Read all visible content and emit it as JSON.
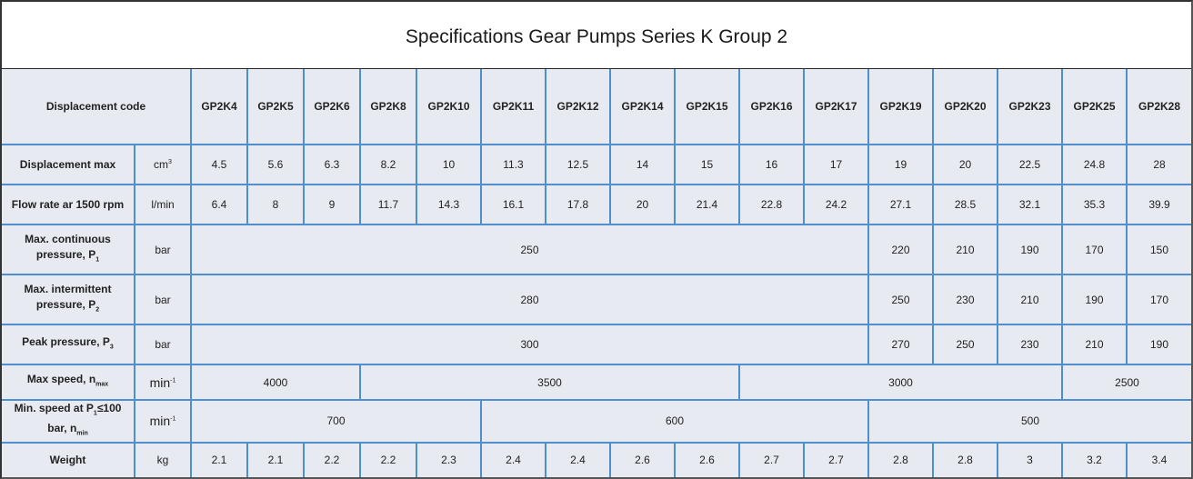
{
  "title": "Specifications Gear Pumps Series K Group 2",
  "header": {
    "label": "Displacement code",
    "models": [
      "GP2K4",
      "GP2K5",
      "GP2K6",
      "GP2K8",
      "GP2K10",
      "GP2K11",
      "GP2K12",
      "GP2K14",
      "GP2K15",
      "GP2K16",
      "GP2K17",
      "GP2K19",
      "GP2K20",
      "GP2K23",
      "GP2K25",
      "GP2K28"
    ]
  },
  "rows": {
    "displacement": {
      "label": "Displacement max",
      "unit_base": "cm",
      "unit_sup": "3",
      "values": [
        "4.5",
        "5.6",
        "6.3",
        "8.2",
        "10",
        "11.3",
        "12.5",
        "14",
        "15",
        "16",
        "17",
        "19",
        "20",
        "22.5",
        "24.8",
        "28"
      ]
    },
    "flow": {
      "label": "Flow rate ar 1500 rpm",
      "unit": "l/min",
      "values": [
        "6.4",
        "8",
        "9",
        "11.7",
        "14.3",
        "16.1",
        "17.8",
        "20",
        "21.4",
        "22.8",
        "24.2",
        "27.1",
        "28.5",
        "32.1",
        "35.3",
        "39.9"
      ]
    },
    "continuous": {
      "label_line1": "Max. continuous",
      "label_line2": "pressure, P",
      "label_sub": "1",
      "unit": "bar",
      "merged": "250",
      "values": [
        "220",
        "210",
        "190",
        "170",
        "150"
      ]
    },
    "intermittent": {
      "label_line1": "Max. intermittent",
      "label_line2": "pressure, P",
      "label_sub": "2",
      "unit": "bar",
      "merged": "280",
      "values": [
        "250",
        "230",
        "210",
        "190",
        "170"
      ]
    },
    "peak": {
      "label": "Peak pressure, P",
      "label_sub": "3",
      "unit": "bar",
      "merged": "300",
      "values": [
        "270",
        "250",
        "230",
        "210",
        "190"
      ]
    },
    "max_speed": {
      "label": "Max speed, n",
      "label_sub": "max",
      "unit_base": "min",
      "unit_sup": "-1",
      "values": [
        "4000",
        "3500",
        "3000",
        "2500"
      ]
    },
    "min_speed": {
      "label_line1": "Min. speed at P",
      "label_sub1": "1",
      "label_line1_end": "≤100",
      "label_line2": "bar, n",
      "label_sub2": "min",
      "unit_base": "min",
      "unit_sup": "-1",
      "values": [
        "700",
        "600",
        "500"
      ]
    },
    "weight": {
      "label": "Weight",
      "unit": "kg",
      "values": [
        "2.1",
        "2.1",
        "2.2",
        "2.2",
        "2.3",
        "2.4",
        "2.4",
        "2.6",
        "2.6",
        "2.7",
        "2.7",
        "2.8",
        "2.8",
        "3",
        "3.2",
        "3.4"
      ]
    }
  }
}
